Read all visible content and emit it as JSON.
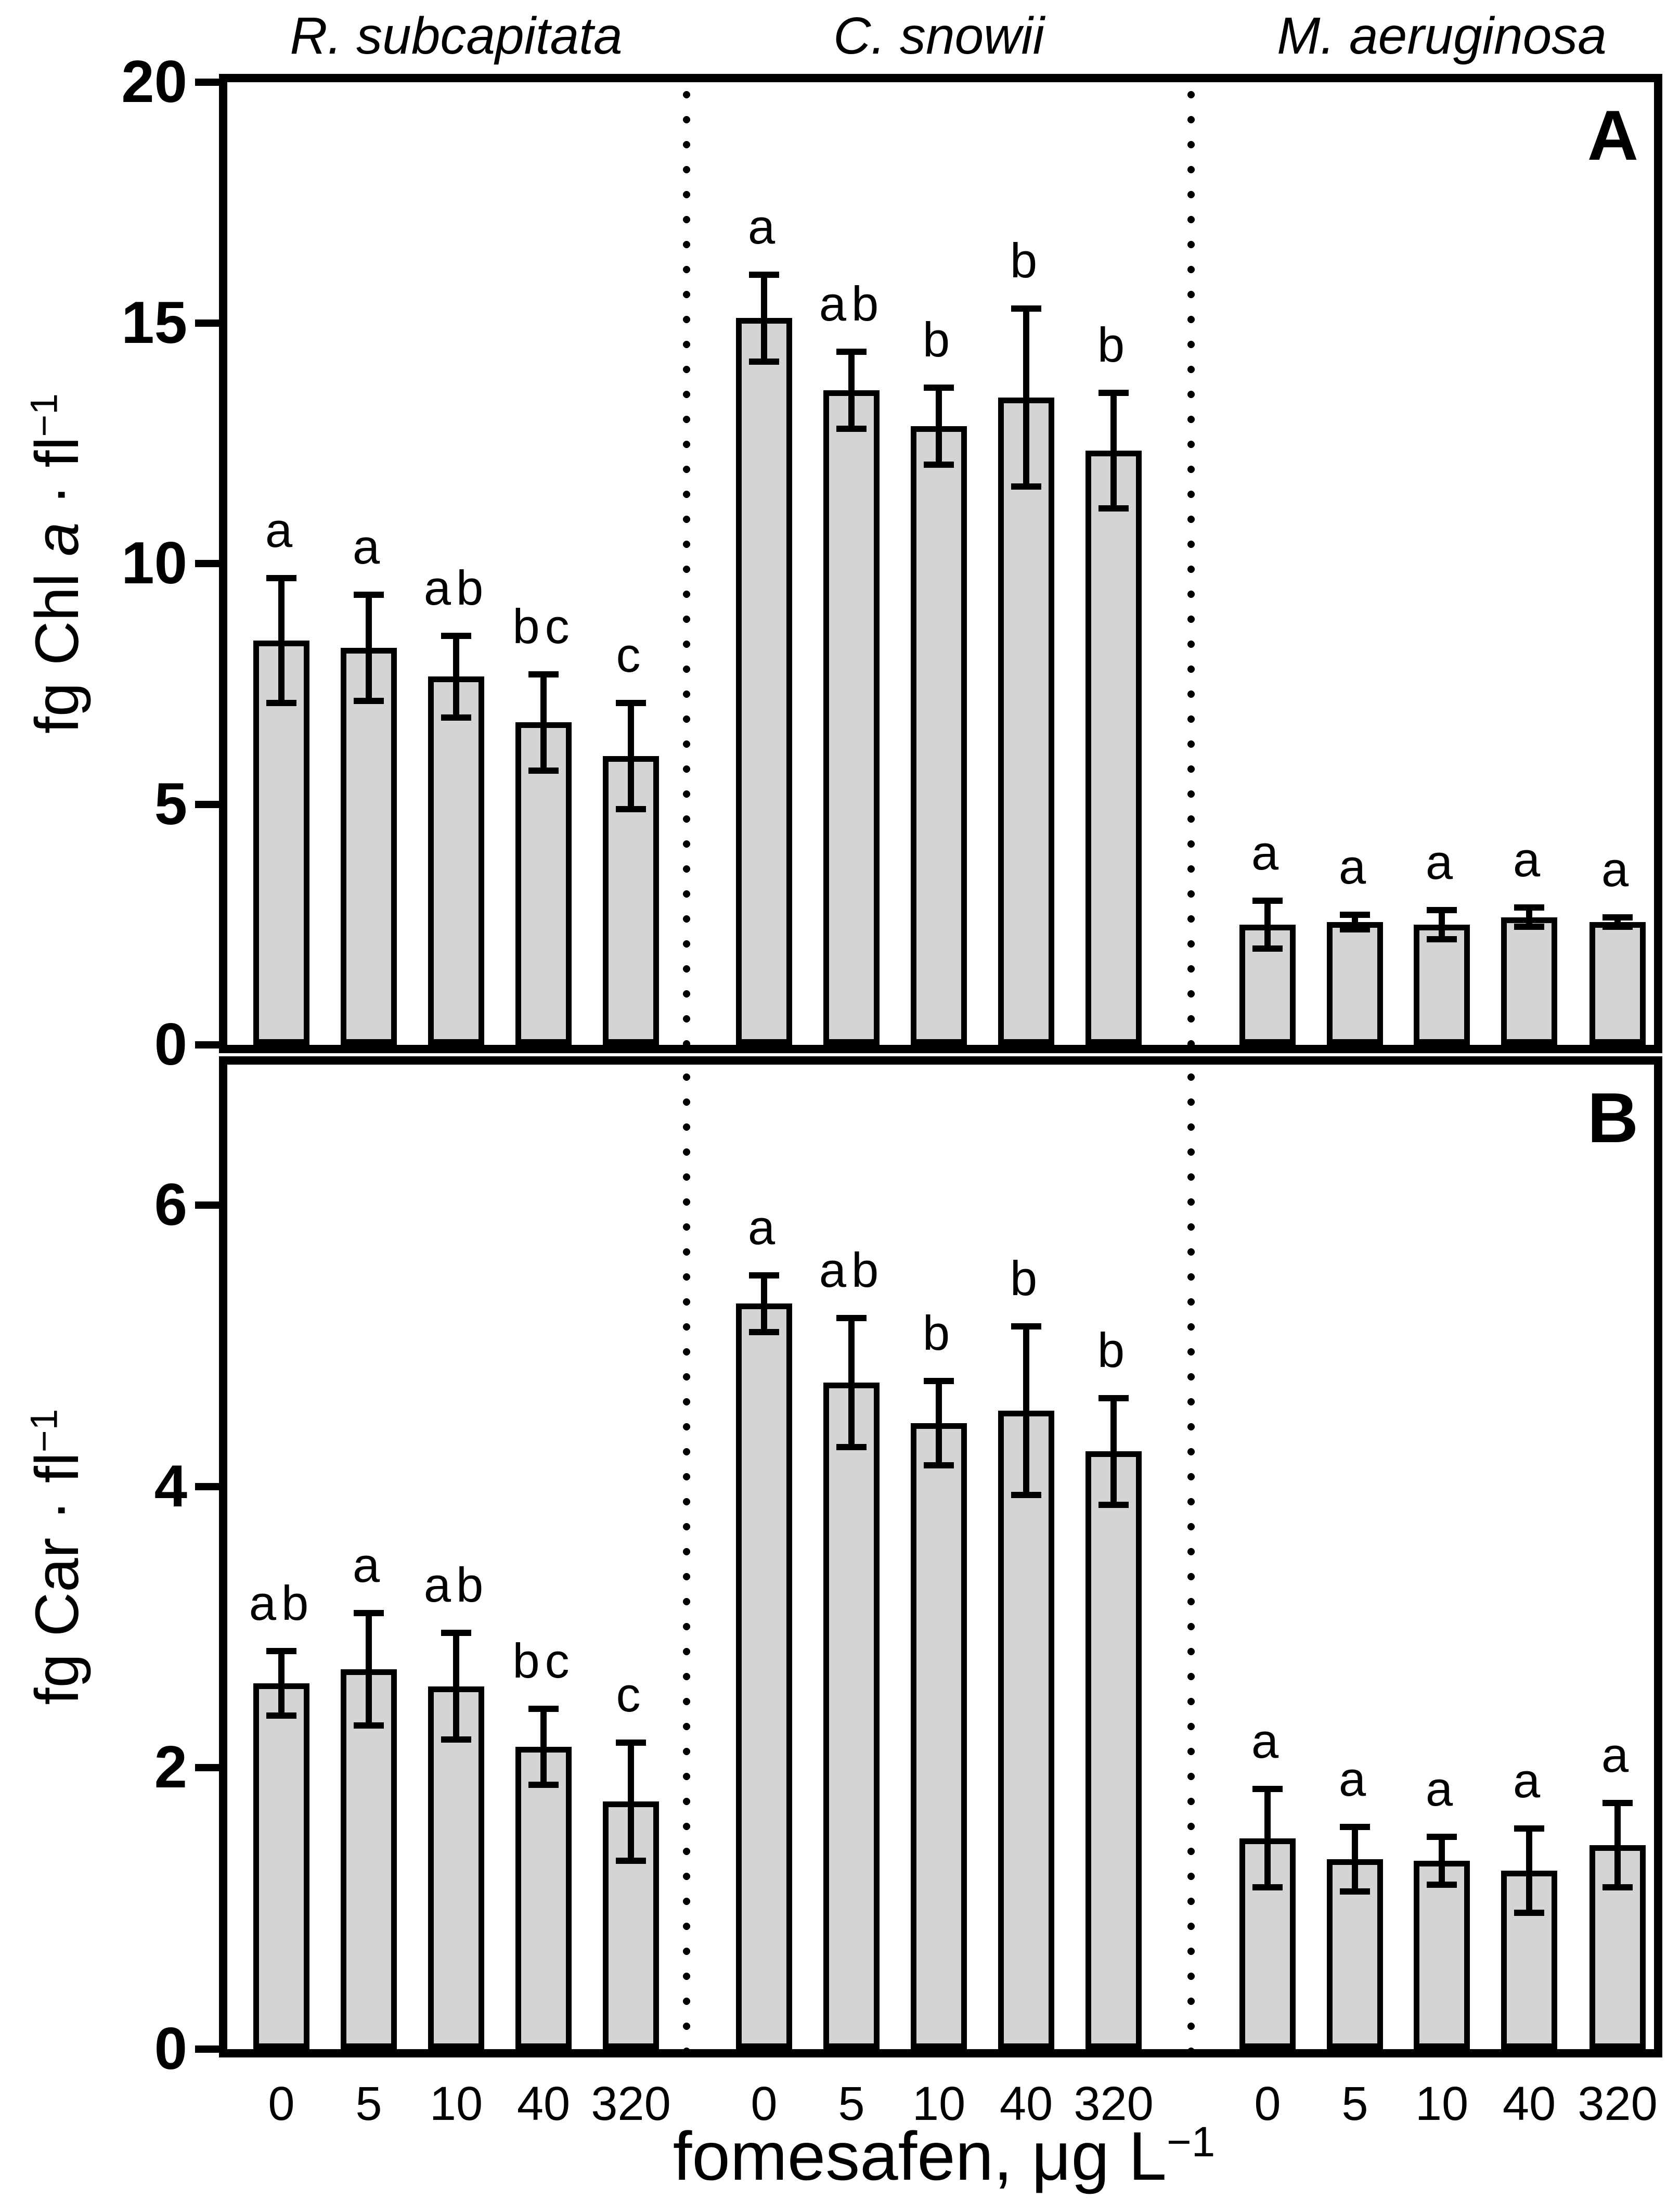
{
  "figure": {
    "background": "#ffffff",
    "ink": "#000000",
    "bar_fill": "#d4d4d4",
    "panel_a_label": "A",
    "panel_b_label": "B"
  },
  "labels": {
    "col_titles": [
      "R. subcapitata",
      "C. snowii",
      "M. aeruginosa"
    ],
    "ylabel_a": {
      "pre": "fg Chl ",
      "italic": "a",
      "mid": " · fl",
      "sup": "−1"
    },
    "ylabel_b": {
      "pre": "fg Car",
      "italic": "",
      "mid": " · fl",
      "sup": "−1"
    },
    "xlabel": {
      "pre": "fomesafen, μg L",
      "sup": "−1"
    }
  },
  "chart_data": {
    "type": "bar",
    "categories": [
      "0",
      "5",
      "10",
      "40",
      "320"
    ],
    "groups": [
      "R. subcapitata",
      "C. snowii",
      "M. aeruginosa"
    ],
    "xlabel": "fomesafen, μg L−1",
    "legend": "none",
    "grid": false,
    "error_bars": true,
    "panels": [
      {
        "id": "A",
        "ylabel": "fg Chl a · fl−1",
        "ylim": [
          0,
          20
        ],
        "yticks": [
          0,
          5,
          10,
          15,
          20
        ],
        "series": [
          {
            "group": "R. subcapitata",
            "values": [
              8.4,
              8.25,
              7.65,
              6.7,
              6.0
            ],
            "errors": [
              1.3,
              1.1,
              0.85,
              1.0,
              1.1
            ],
            "letters": [
              "a",
              "a",
              "ab",
              "bc",
              "c"
            ]
          },
          {
            "group": "C. snowii",
            "values": [
              15.1,
              13.6,
              12.85,
              13.45,
              12.35
            ],
            "errors": [
              0.9,
              0.8,
              0.8,
              1.85,
              1.2
            ],
            "letters": [
              "a",
              "ab",
              "b",
              "b",
              "b"
            ]
          },
          {
            "group": "M. aeruginosa",
            "values": [
              2.5,
              2.55,
              2.5,
              2.65,
              2.55
            ],
            "errors": [
              0.5,
              0.15,
              0.3,
              0.2,
              0.1
            ],
            "letters": [
              "a",
              "a",
              "a",
              "a",
              "a"
            ]
          }
        ]
      },
      {
        "id": "B",
        "ylabel": "fg Car · fl−1",
        "ylim": [
          0,
          7
        ],
        "yticks": [
          0,
          2,
          4,
          6
        ],
        "series": [
          {
            "group": "R. subcapitata",
            "values": [
              2.6,
              2.7,
              2.58,
              2.15,
              1.76
            ],
            "errors": [
              0.23,
              0.4,
              0.38,
              0.27,
              0.42
            ],
            "letters": [
              "ab",
              "a",
              "ab",
              "bc",
              "c"
            ]
          },
          {
            "group": "C. snowii",
            "values": [
              5.3,
              4.74,
              4.45,
              4.54,
              4.25
            ],
            "errors": [
              0.2,
              0.46,
              0.3,
              0.6,
              0.38
            ],
            "letters": [
              "a",
              "ab",
              "b",
              "b",
              "b"
            ]
          },
          {
            "group": "M. aeruginosa",
            "values": [
              1.5,
              1.35,
              1.34,
              1.27,
              1.45
            ],
            "errors": [
              0.35,
              0.23,
              0.17,
              0.3,
              0.3
            ],
            "letters": [
              "a",
              "a",
              "a",
              "a",
              "a"
            ]
          }
        ]
      }
    ]
  }
}
